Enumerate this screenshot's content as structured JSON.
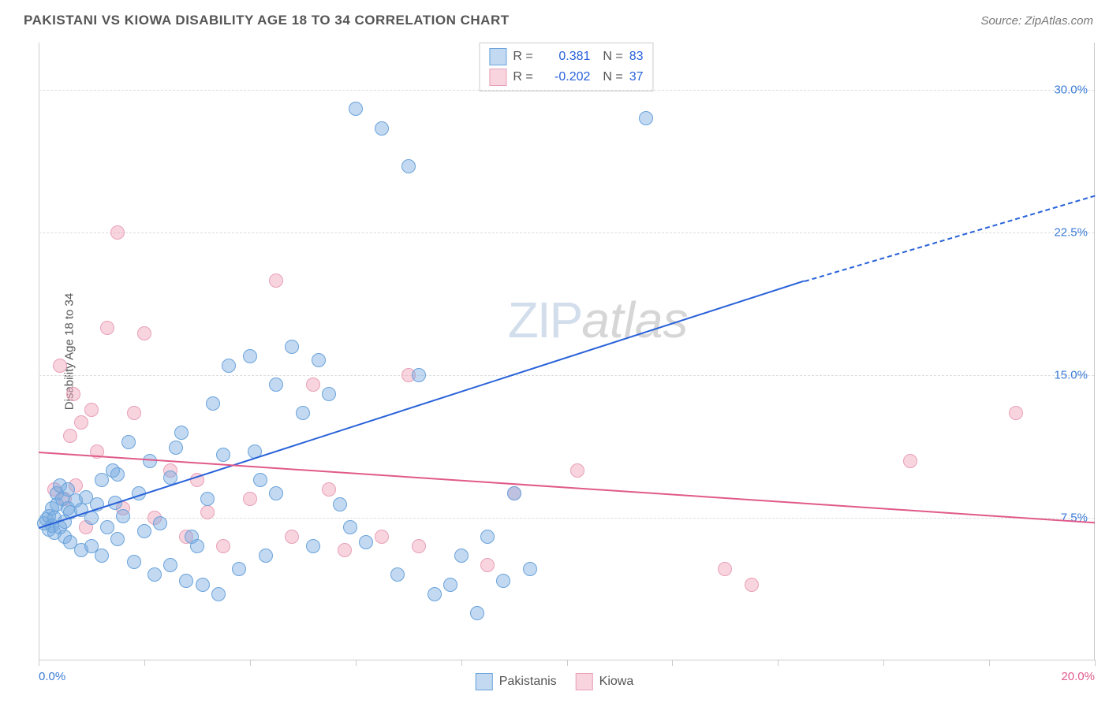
{
  "header": {
    "title": "PAKISTANI VS KIOWA DISABILITY AGE 18 TO 34 CORRELATION CHART",
    "source": "Source: ZipAtlas.com"
  },
  "chart": {
    "type": "scatter",
    "ylabel": "Disability Age 18 to 34",
    "ylabel_fontsize": 15,
    "ylabel_color": "#555555",
    "background_color": "#ffffff",
    "border_color": "#cccccc",
    "grid_color": "#dddddd",
    "xlim": [
      0,
      20
    ],
    "ylim": [
      0,
      32.5
    ],
    "x_ticks": [
      0,
      2,
      4,
      6,
      8,
      10,
      12,
      14,
      16,
      18,
      20
    ],
    "x_tick_labels": {
      "0": "0.0%",
      "20": "20.0%"
    },
    "x_label_color_left": "#3a7bd5",
    "x_label_color_right": "#e05a8a",
    "y_gridlines": [
      7.5,
      15.0,
      22.5,
      30.0
    ],
    "y_tick_labels": [
      "7.5%",
      "15.0%",
      "22.5%",
      "30.0%"
    ],
    "y_label_color": "#3a7bd5",
    "point_radius": 9,
    "point_border_width": 1,
    "series": {
      "pakistanis": {
        "label": "Pakistanis",
        "fill": "rgba(120,170,225,0.45)",
        "stroke": "#6aa3db",
        "points": [
          [
            0.1,
            7.2
          ],
          [
            0.15,
            7.4
          ],
          [
            0.2,
            7.6
          ],
          [
            0.2,
            6.9
          ],
          [
            0.25,
            7.1
          ],
          [
            0.25,
            8.0
          ],
          [
            0.3,
            7.5
          ],
          [
            0.3,
            6.7
          ],
          [
            0.35,
            8.2
          ],
          [
            0.35,
            8.8
          ],
          [
            0.4,
            7.0
          ],
          [
            0.4,
            9.2
          ],
          [
            0.45,
            8.5
          ],
          [
            0.5,
            7.3
          ],
          [
            0.5,
            6.5
          ],
          [
            0.55,
            8.0
          ],
          [
            0.55,
            9.0
          ],
          [
            0.6,
            7.8
          ],
          [
            0.6,
            6.2
          ],
          [
            0.7,
            8.4
          ],
          [
            0.8,
            7.9
          ],
          [
            0.8,
            5.8
          ],
          [
            0.9,
            8.6
          ],
          [
            1.0,
            7.5
          ],
          [
            1.0,
            6.0
          ],
          [
            1.1,
            8.2
          ],
          [
            1.2,
            9.5
          ],
          [
            1.2,
            5.5
          ],
          [
            1.3,
            7.0
          ],
          [
            1.4,
            10.0
          ],
          [
            1.45,
            8.3
          ],
          [
            1.5,
            6.4
          ],
          [
            1.5,
            9.8
          ],
          [
            1.6,
            7.6
          ],
          [
            1.7,
            11.5
          ],
          [
            1.8,
            5.2
          ],
          [
            1.9,
            8.8
          ],
          [
            2.0,
            6.8
          ],
          [
            2.1,
            10.5
          ],
          [
            2.2,
            4.5
          ],
          [
            2.3,
            7.2
          ],
          [
            2.5,
            9.6
          ],
          [
            2.5,
            5.0
          ],
          [
            2.7,
            12.0
          ],
          [
            2.8,
            4.2
          ],
          [
            2.9,
            6.5
          ],
          [
            3.1,
            4.0
          ],
          [
            3.2,
            8.5
          ],
          [
            3.3,
            13.5
          ],
          [
            3.4,
            3.5
          ],
          [
            3.5,
            10.8
          ],
          [
            3.6,
            15.5
          ],
          [
            3.8,
            4.8
          ],
          [
            4.0,
            16.0
          ],
          [
            4.1,
            11.0
          ],
          [
            4.3,
            5.5
          ],
          [
            4.5,
            8.8
          ],
          [
            4.5,
            14.5
          ],
          [
            4.8,
            16.5
          ],
          [
            5.0,
            13.0
          ],
          [
            5.2,
            6.0
          ],
          [
            5.3,
            15.8
          ],
          [
            5.5,
            14.0
          ],
          [
            5.7,
            8.2
          ],
          [
            6.0,
            29.0
          ],
          [
            6.2,
            6.2
          ],
          [
            6.5,
            28.0
          ],
          [
            6.8,
            4.5
          ],
          [
            7.0,
            26.0
          ],
          [
            7.2,
            15.0
          ],
          [
            7.5,
            3.5
          ],
          [
            7.8,
            4.0
          ],
          [
            8.0,
            5.5
          ],
          [
            8.3,
            2.5
          ],
          [
            8.5,
            6.5
          ],
          [
            8.8,
            4.2
          ],
          [
            9.0,
            8.8
          ],
          [
            9.3,
            4.8
          ],
          [
            11.5,
            28.5
          ],
          [
            5.9,
            7.0
          ],
          [
            4.2,
            9.5
          ],
          [
            3.0,
            6.0
          ],
          [
            2.6,
            11.2
          ]
        ]
      },
      "kiowa": {
        "label": "Kiowa",
        "fill": "rgba(240,160,185,0.45)",
        "stroke": "#e8a0b8",
        "points": [
          [
            0.3,
            9.0
          ],
          [
            0.4,
            15.5
          ],
          [
            0.5,
            8.5
          ],
          [
            0.6,
            11.8
          ],
          [
            0.65,
            14.0
          ],
          [
            0.7,
            9.2
          ],
          [
            0.8,
            12.5
          ],
          [
            0.9,
            7.0
          ],
          [
            1.0,
            13.2
          ],
          [
            1.1,
            11.0
          ],
          [
            1.3,
            17.5
          ],
          [
            1.5,
            22.5
          ],
          [
            1.6,
            8.0
          ],
          [
            1.8,
            13.0
          ],
          [
            2.0,
            17.2
          ],
          [
            2.2,
            7.5
          ],
          [
            2.5,
            10.0
          ],
          [
            2.8,
            6.5
          ],
          [
            3.0,
            9.5
          ],
          [
            3.2,
            7.8
          ],
          [
            3.5,
            6.0
          ],
          [
            4.0,
            8.5
          ],
          [
            4.5,
            20.0
          ],
          [
            4.8,
            6.5
          ],
          [
            5.5,
            9.0
          ],
          [
            5.8,
            5.8
          ],
          [
            6.5,
            6.5
          ],
          [
            7.2,
            6.0
          ],
          [
            8.5,
            5.0
          ],
          [
            9.0,
            8.8
          ],
          [
            10.2,
            10.0
          ],
          [
            13.0,
            4.8
          ],
          [
            13.5,
            4.0
          ],
          [
            16.5,
            10.5
          ],
          [
            18.5,
            13.0
          ],
          [
            7.0,
            15.0
          ],
          [
            5.2,
            14.5
          ]
        ]
      }
    },
    "trend_lines": {
      "pakistanis": {
        "color": "#2962d9",
        "width": 2,
        "start": [
          0,
          7.0
        ],
        "solid_end": [
          14.5,
          20.0
        ],
        "dash_end": [
          20,
          24.5
        ]
      },
      "kiowa": {
        "color": "#e05a8a",
        "width": 2,
        "start": [
          0,
          11.0
        ],
        "end": [
          20,
          7.3
        ]
      }
    }
  },
  "legend": {
    "rows": [
      {
        "swatch_fill": "rgba(120,170,225,0.45)",
        "swatch_stroke": "#6aa3db",
        "r_label": "R =",
        "r_value": "0.381",
        "r_color": "#2962d9",
        "n_label": "N =",
        "n_value": "83",
        "n_color": "#2962d9"
      },
      {
        "swatch_fill": "rgba(240,160,185,0.45)",
        "swatch_stroke": "#e8a0b8",
        "r_label": "R =",
        "r_value": "-0.202",
        "r_color": "#2962d9",
        "n_label": "N =",
        "n_value": "37",
        "n_color": "#2962d9"
      }
    ]
  },
  "bottom_legend": {
    "items": [
      {
        "swatch_fill": "rgba(120,170,225,0.45)",
        "swatch_stroke": "#6aa3db",
        "label": "Pakistanis"
      },
      {
        "swatch_fill": "rgba(240,160,185,0.45)",
        "swatch_stroke": "#e8a0b8",
        "label": "Kiowa"
      }
    ]
  },
  "watermark": {
    "zip": "ZIP",
    "atlas": "atlas"
  }
}
